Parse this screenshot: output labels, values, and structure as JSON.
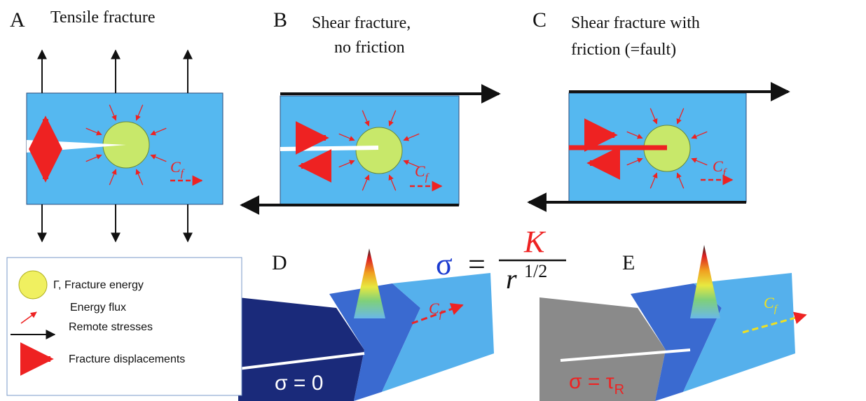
{
  "panels": [
    {
      "letter": "A",
      "title": [
        "Tensile fracture"
      ]
    },
    {
      "letter": "B",
      "title": [
        "Shear fracture,",
        "no friction"
      ]
    },
    {
      "letter": "C",
      "title": [
        "Shear fracture with",
        "friction (=fault)"
      ]
    },
    {
      "letter": "D",
      "surface_label": {
        "text": "σ = 0"
      }
    },
    {
      "letter": "E",
      "surface_label": {
        "text": "σ = τ",
        "subscript": "R"
      }
    }
  ],
  "velocity_label": {
    "symbol": "C",
    "subscript": "f"
  },
  "equation": {
    "lhs": "σ",
    "equals": "=",
    "numerator": "K",
    "denominator": "r",
    "exponent": "1/2"
  },
  "legend": [
    "Γ, Fracture energy",
    "Energy flux",
    "Remote stresses",
    "Fracture displacements"
  ]
}
